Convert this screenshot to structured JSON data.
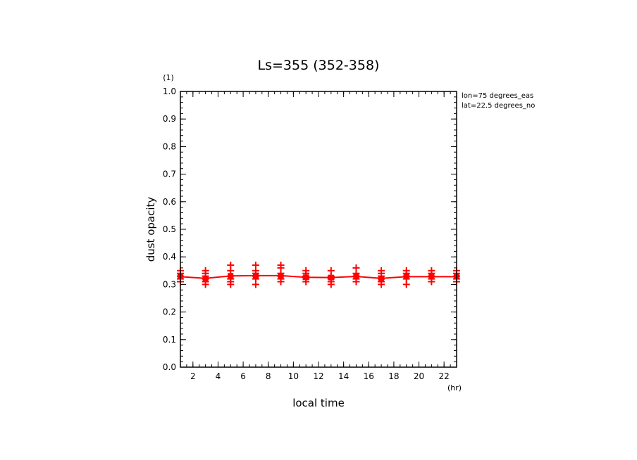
{
  "chart_data": {
    "type": "line",
    "title": "Ls=355 (352-358)",
    "xlabel": "local time",
    "x_unit": "(hr)",
    "ylabel": "dust opacity",
    "y_unit": "(1)",
    "annotations": [
      "lon=75 degrees_eas",
      "lat=22.5 degrees_no"
    ],
    "xlim": [
      1,
      23
    ],
    "ylim": [
      0,
      1
    ],
    "x_ticks": [
      2,
      4,
      6,
      8,
      10,
      12,
      14,
      16,
      18,
      20,
      22
    ],
    "y_ticks": [
      "0.0",
      "0.1",
      "0.2",
      "0.3",
      "0.4",
      "0.5",
      "0.6",
      "0.7",
      "0.8",
      "0.9",
      "1.0"
    ],
    "grid": false,
    "series_color": "#ff0000",
    "series": [
      {
        "x": [
          1,
          3,
          5,
          7,
          9,
          11,
          13,
          15,
          17,
          19,
          21,
          23
        ],
        "values": [
          0.328,
          0.322,
          0.331,
          0.332,
          0.332,
          0.326,
          0.325,
          0.329,
          0.322,
          0.328,
          0.328,
          0.328
        ],
        "samples": [
          [
            0.31,
            0.32,
            0.33,
            0.34,
            0.35
          ],
          [
            0.3,
            0.31,
            0.32,
            0.33,
            0.34,
            0.35
          ],
          [
            0.3,
            0.31,
            0.32,
            0.33,
            0.35,
            0.37
          ],
          [
            0.3,
            0.32,
            0.33,
            0.34,
            0.35,
            0.37
          ],
          [
            0.31,
            0.32,
            0.33,
            0.34,
            0.36,
            0.37
          ],
          [
            0.31,
            0.32,
            0.33,
            0.34,
            0.35
          ],
          [
            0.3,
            0.31,
            0.32,
            0.33,
            0.35
          ],
          [
            0.31,
            0.32,
            0.33,
            0.34,
            0.36
          ],
          [
            0.3,
            0.31,
            0.32,
            0.33,
            0.34,
            0.35
          ],
          [
            0.3,
            0.32,
            0.33,
            0.34,
            0.35
          ],
          [
            0.31,
            0.32,
            0.33,
            0.34,
            0.35
          ],
          [
            0.31,
            0.32,
            0.33,
            0.34,
            0.35
          ]
        ]
      }
    ]
  }
}
